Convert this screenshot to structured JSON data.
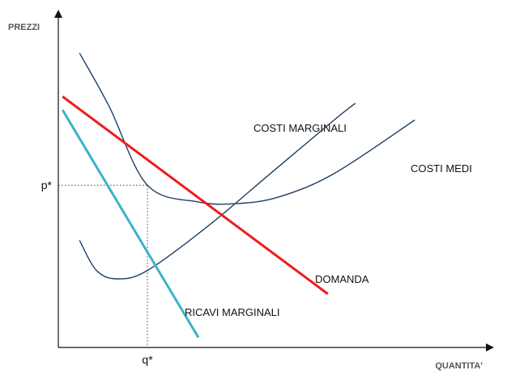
{
  "chart_data": {
    "type": "line",
    "xlabel": "QUANTITA'",
    "ylabel": "PREZZI",
    "xlim": [
      0,
      10
    ],
    "ylim": [
      0,
      10
    ],
    "grid": false,
    "legend": "none",
    "equilibrium": {
      "x": 2.1,
      "y": 4.85,
      "x_label": "q*",
      "y_label": "p*"
    },
    "series": [
      {
        "name": "COSTI MARGINALI",
        "color": "#1f3f66",
        "points": [
          [
            0.5,
            3.2
          ],
          [
            0.9,
            2.3
          ],
          [
            1.4,
            2.05
          ],
          [
            2.1,
            2.3
          ],
          [
            3.5,
            3.6
          ],
          [
            5.0,
            5.2
          ],
          [
            6.5,
            6.8
          ],
          [
            7.0,
            7.3
          ]
        ]
      },
      {
        "name": "COSTI MEDI",
        "color": "#1f3f66",
        "points": [
          [
            0.5,
            8.8
          ],
          [
            1.2,
            7.2
          ],
          [
            2.1,
            4.85
          ],
          [
            3.3,
            4.35
          ],
          [
            4.2,
            4.3
          ],
          [
            5.2,
            4.5
          ],
          [
            6.5,
            5.2
          ],
          [
            8.4,
            6.8
          ]
        ]
      },
      {
        "name": "DOMANDA",
        "color": "#ee1c1c",
        "points": [
          [
            0.1,
            7.5
          ],
          [
            6.35,
            1.6
          ]
        ]
      },
      {
        "name": "RICAVI MARGINALI",
        "color": "#3db2c9",
        "points": [
          [
            0.1,
            7.1
          ],
          [
            3.3,
            0.3
          ]
        ]
      }
    ]
  }
}
